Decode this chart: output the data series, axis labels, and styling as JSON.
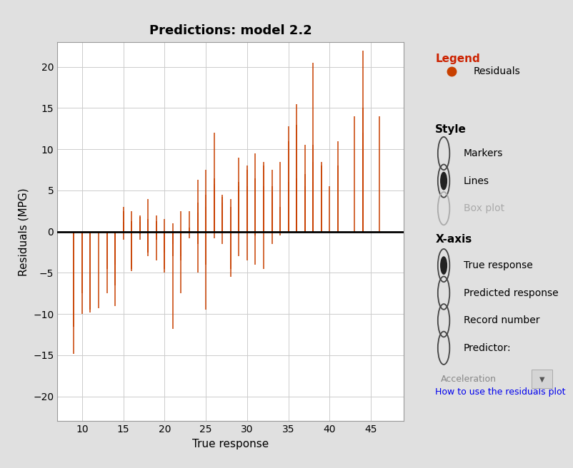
{
  "title": "Predictions: model 2.2",
  "xlabel": "True response",
  "ylabel": "Residuals (MPG)",
  "xlim": [
    7,
    49
  ],
  "ylim": [
    -23,
    23
  ],
  "xticks": [
    10,
    15,
    20,
    25,
    30,
    35,
    40,
    45
  ],
  "yticks": [
    -20,
    -15,
    -10,
    -5,
    0,
    5,
    10,
    15,
    20
  ],
  "line_color": "#C84000",
  "zero_line_color": "#000000",
  "plot_bg_color": "#ffffff",
  "panel_bg": "#e0e0e0",
  "title_fontsize": 13,
  "label_fontsize": 11,
  "legend_dot_color": "#C84000",
  "data": [
    [
      9.0,
      -14.8
    ],
    [
      9.0,
      -11.5
    ],
    [
      10.0,
      -7.5
    ],
    [
      10.0,
      -10.0
    ],
    [
      11.0,
      -9.5
    ],
    [
      11.0,
      -9.8
    ],
    [
      12.0,
      -9.3
    ],
    [
      13.0,
      -7.5
    ],
    [
      13.0,
      -4.5
    ],
    [
      14.0,
      -6.5
    ],
    [
      14.0,
      -4.0
    ],
    [
      14.0,
      -9.0
    ],
    [
      15.0,
      -1.0
    ],
    [
      15.0,
      2.5
    ],
    [
      15.0,
      1.2
    ],
    [
      15.0,
      3.0
    ],
    [
      16.0,
      -4.8
    ],
    [
      16.0,
      -4.5
    ],
    [
      16.0,
      1.3
    ],
    [
      16.0,
      2.5
    ],
    [
      17.0,
      -0.3
    ],
    [
      17.0,
      1.2
    ],
    [
      17.0,
      -1.0
    ],
    [
      17.0,
      1.8
    ],
    [
      17.0,
      2.0
    ],
    [
      18.0,
      -1.5
    ],
    [
      18.0,
      -2.5
    ],
    [
      18.0,
      1.5
    ],
    [
      18.0,
      -2.5
    ],
    [
      18.0,
      4.0
    ],
    [
      18.0,
      -3.0
    ],
    [
      19.0,
      -0.5
    ],
    [
      19.0,
      -3.5
    ],
    [
      19.0,
      -1.0
    ],
    [
      19.0,
      2.0
    ],
    [
      19.0,
      1.3
    ],
    [
      20.0,
      -1.0
    ],
    [
      20.0,
      -2.5
    ],
    [
      20.0,
      -2.0
    ],
    [
      20.0,
      -5.0
    ],
    [
      20.0,
      -4.5
    ],
    [
      20.0,
      1.5
    ],
    [
      20.0,
      -1.5
    ],
    [
      21.0,
      -3.0
    ],
    [
      21.0,
      -1.5
    ],
    [
      21.0,
      1.0
    ],
    [
      21.0,
      -11.8
    ],
    [
      21.0,
      -1.0
    ],
    [
      22.0,
      -3.5
    ],
    [
      22.0,
      2.5
    ],
    [
      22.0,
      -7.5
    ],
    [
      22.0,
      -3.0
    ],
    [
      23.0,
      0.5
    ],
    [
      23.0,
      2.5
    ],
    [
      23.0,
      -0.8
    ],
    [
      24.0,
      1.5
    ],
    [
      24.0,
      6.3
    ],
    [
      24.0,
      -1.5
    ],
    [
      24.0,
      2.3
    ],
    [
      24.0,
      3.5
    ],
    [
      24.0,
      -5.0
    ],
    [
      25.0,
      4.5
    ],
    [
      25.0,
      7.5
    ],
    [
      25.0,
      -9.5
    ],
    [
      25.0,
      -4.0
    ],
    [
      25.0,
      3.0
    ],
    [
      26.0,
      5.8
    ],
    [
      26.0,
      4.0
    ],
    [
      26.0,
      6.5
    ],
    [
      26.0,
      -0.8
    ],
    [
      26.0,
      5.5
    ],
    [
      26.0,
      12.0
    ],
    [
      27.0,
      -1.5
    ],
    [
      27.0,
      2.5
    ],
    [
      27.0,
      4.2
    ],
    [
      27.0,
      4.5
    ],
    [
      27.0,
      3.5
    ],
    [
      28.0,
      -4.5
    ],
    [
      28.0,
      3.0
    ],
    [
      28.0,
      -5.5
    ],
    [
      28.0,
      4.0
    ],
    [
      29.0,
      6.0
    ],
    [
      29.0,
      5.5
    ],
    [
      29.0,
      9.0
    ],
    [
      29.0,
      -3.0
    ],
    [
      30.0,
      8.0
    ],
    [
      30.0,
      -3.5
    ],
    [
      30.0,
      7.5
    ],
    [
      30.0,
      5.5
    ],
    [
      31.0,
      9.5
    ],
    [
      31.0,
      -0.5
    ],
    [
      31.0,
      6.5
    ],
    [
      31.0,
      -4.0
    ],
    [
      32.0,
      -4.5
    ],
    [
      32.0,
      8.5
    ],
    [
      32.0,
      5.5
    ],
    [
      32.0,
      8.0
    ],
    [
      33.0,
      3.5
    ],
    [
      33.0,
      7.5
    ],
    [
      33.0,
      -1.5
    ],
    [
      33.0,
      5.5
    ],
    [
      33.0,
      4.8
    ],
    [
      34.0,
      -0.5
    ],
    [
      34.0,
      8.5
    ],
    [
      34.0,
      3.0
    ],
    [
      35.0,
      12.8
    ],
    [
      35.0,
      1.0
    ],
    [
      35.0,
      6.0
    ],
    [
      35.0,
      11.0
    ],
    [
      36.0,
      15.5
    ],
    [
      36.0,
      13.0
    ],
    [
      36.0,
      6.5
    ],
    [
      37.0,
      10.5
    ],
    [
      37.0,
      5.5
    ],
    [
      37.0,
      7.0
    ],
    [
      38.0,
      20.5
    ],
    [
      38.0,
      8.5
    ],
    [
      38.0,
      6.0
    ],
    [
      38.0,
      10.5
    ],
    [
      39.0,
      8.0
    ],
    [
      39.0,
      8.5
    ],
    [
      40.0,
      5.5
    ],
    [
      41.0,
      8.0
    ],
    [
      41.0,
      11.0
    ],
    [
      43.0,
      14.0
    ],
    [
      44.0,
      22.0
    ],
    [
      44.0,
      10.5
    ],
    [
      44.0,
      15.0
    ],
    [
      44.0,
      12.0
    ],
    [
      46.0,
      14.0
    ]
  ]
}
